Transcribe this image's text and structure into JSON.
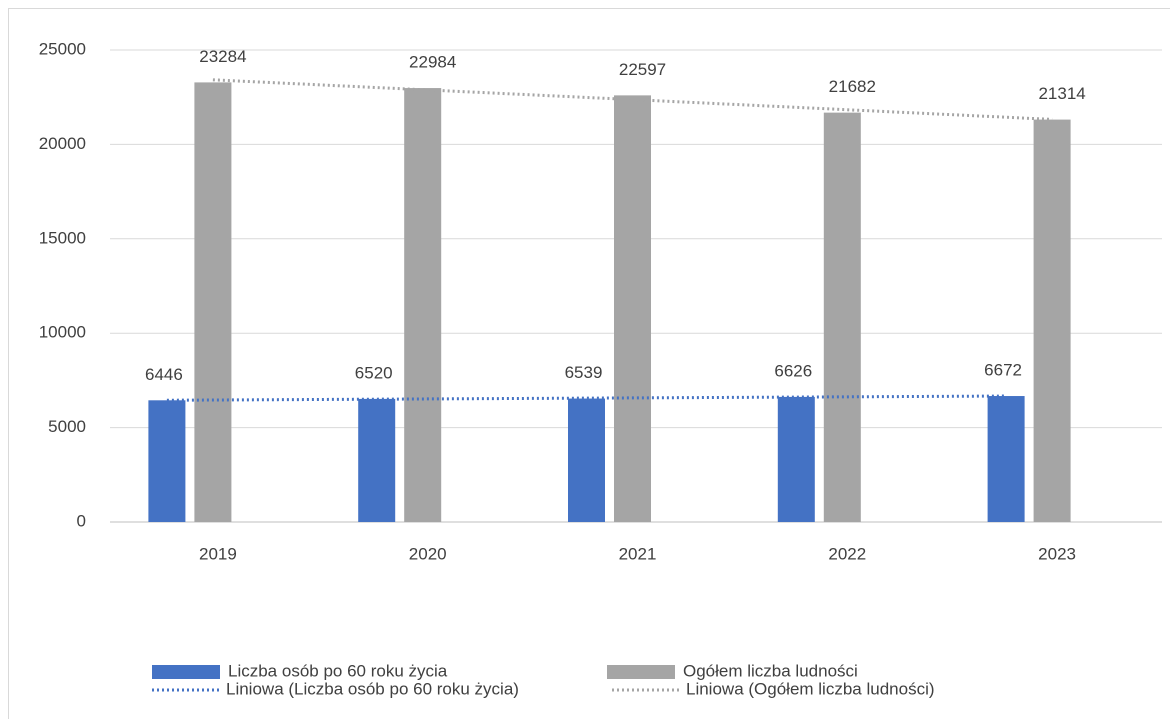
{
  "chart_data": {
    "type": "bar",
    "categories": [
      "2019",
      "2020",
      "2021",
      "2022",
      "2023"
    ],
    "series": [
      {
        "name": "Liczba osób po 60 roku życia",
        "color": "#4472c4",
        "values": [
          6446,
          6520,
          6539,
          6626,
          6672
        ]
      },
      {
        "name": "Ogółem liczba ludności",
        "color": "#a5a5a5",
        "values": [
          23284,
          22984,
          22597,
          21682,
          21314
        ]
      }
    ],
    "trendlines": [
      {
        "name": "Liniowa (Liczba osób po 60 roku życia)",
        "series": 0,
        "color": "#4472c4"
      },
      {
        "name": "Liniowa (Ogółem liczba ludności)",
        "series": 1,
        "color": "#a5a5a5"
      }
    ],
    "ylim": [
      0,
      25000
    ],
    "yticks": [
      0,
      5000,
      10000,
      15000,
      20000,
      25000
    ],
    "grid": true,
    "legend": "bottom"
  }
}
